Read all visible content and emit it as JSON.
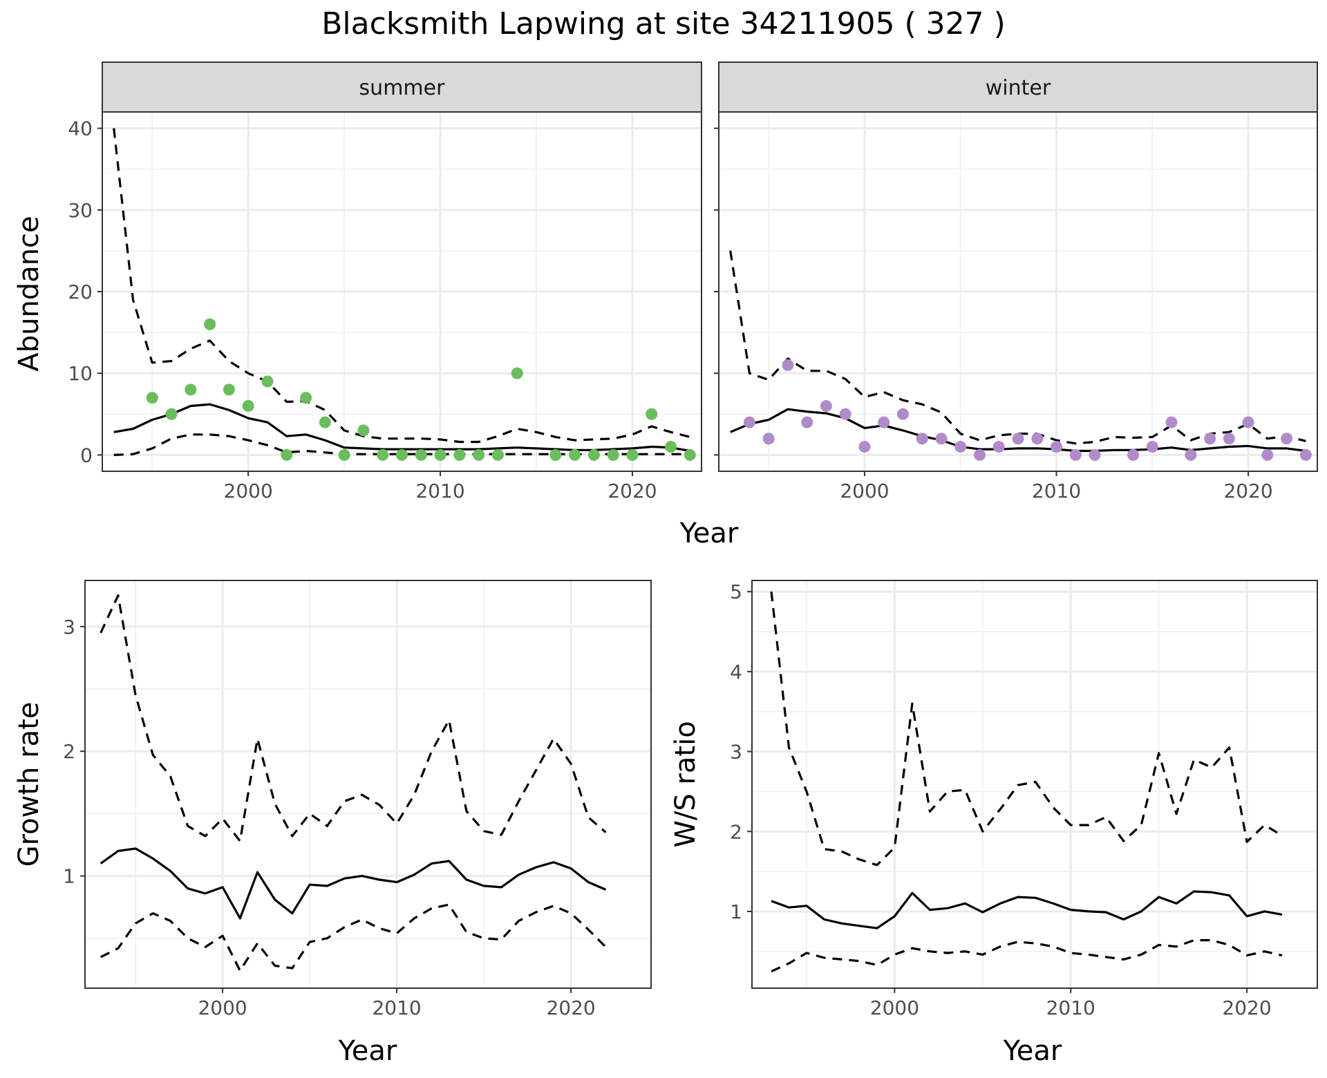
{
  "title": "Blacksmith Lapwing at site 34211905 ( 327 )",
  "colors": {
    "summer_points": "#6ABD5B",
    "winter_points": "#B08BC9",
    "line": "#000000",
    "strip_bg": "#D9D9D9",
    "grid": "#EBEBEB"
  },
  "chart_data": [
    {
      "type": "scatter",
      "panel": "summer",
      "strip_label": "summer",
      "xlabel": "Year",
      "ylabel": "Abundance",
      "xlim": [
        1992.4,
        2023.6
      ],
      "ylim": [
        -2,
        42
      ],
      "x_ticks": [
        2000,
        2010,
        2020
      ],
      "y_ticks": [
        0,
        10,
        20,
        30,
        40
      ],
      "grid": true,
      "points": {
        "x": [
          1995,
          1996,
          1997,
          1998,
          1999,
          2000,
          2001,
          2002,
          2003,
          2004,
          2005,
          2006,
          2007,
          2008,
          2009,
          2010,
          2011,
          2012,
          2013,
          2014,
          2016,
          2017,
          2018,
          2019,
          2020,
          2021,
          2022,
          2023
        ],
        "y": [
          7,
          5,
          8,
          16,
          8,
          6,
          9,
          0,
          7,
          4,
          0,
          3,
          0,
          0,
          0,
          0,
          0,
          0,
          0,
          10,
          0,
          0,
          0,
          0,
          0,
          5,
          1,
          0
        ]
      },
      "x": [
        1993,
        1994,
        1995,
        1996,
        1997,
        1998,
        1999,
        2000,
        2001,
        2002,
        2003,
        2004,
        2005,
        2006,
        2007,
        2008,
        2009,
        2010,
        2011,
        2012,
        2013,
        2014,
        2015,
        2016,
        2017,
        2018,
        2019,
        2020,
        2021,
        2022,
        2023
      ],
      "estimate": [
        2.8,
        3.2,
        4.3,
        5.0,
        6.0,
        6.2,
        5.5,
        4.5,
        4.0,
        2.3,
        2.5,
        1.8,
        0.9,
        0.8,
        0.7,
        0.7,
        0.7,
        0.7,
        0.7,
        0.7,
        0.8,
        0.9,
        0.8,
        0.7,
        0.6,
        0.6,
        0.7,
        0.8,
        1.0,
        0.9,
        0.5
      ],
      "upper": [
        40,
        19,
        11.3,
        11.5,
        13,
        14,
        11.5,
        10,
        9,
        6.5,
        6.6,
        5.5,
        3,
        2.3,
        2,
        2,
        2,
        1.9,
        1.6,
        1.6,
        2.3,
        3.2,
        2.8,
        2.2,
        1.8,
        1.9,
        2.0,
        2.5,
        3.5,
        2.8,
        2.2
      ],
      "lower": [
        0,
        0.1,
        0.8,
        2.0,
        2.5,
        2.5,
        2.3,
        1.8,
        1.2,
        0.3,
        0.5,
        0.3,
        0.1,
        0.1,
        0.1,
        0.1,
        0.1,
        0.1,
        0.1,
        0.1,
        0.1,
        0.1,
        0.1,
        0.1,
        0.1,
        0.1,
        0.1,
        0.1,
        0.1,
        0.1,
        0.1
      ]
    },
    {
      "type": "scatter",
      "panel": "winter",
      "strip_label": "winter",
      "xlabel": "Year",
      "ylabel": "Abundance",
      "xlim": [
        1992.4,
        2023.6
      ],
      "ylim": [
        -2,
        42
      ],
      "x_ticks": [
        2000,
        2010,
        2020
      ],
      "y_ticks": [
        0,
        10,
        20,
        30,
        40
      ],
      "grid": true,
      "points": {
        "x": [
          1994,
          1995,
          1996,
          1997,
          1998,
          1999,
          2000,
          2001,
          2002,
          2003,
          2004,
          2005,
          2006,
          2007,
          2008,
          2009,
          2010,
          2011,
          2012,
          2014,
          2015,
          2016,
          2017,
          2018,
          2019,
          2020,
          2021,
          2022,
          2023
        ],
        "y": [
          4,
          2,
          11,
          4,
          6,
          5,
          1,
          4,
          5,
          2,
          2,
          1,
          0,
          1,
          2,
          2,
          1,
          0,
          0,
          0,
          1,
          4,
          0,
          2,
          2,
          4,
          0,
          2,
          0
        ]
      },
      "x": [
        1993,
        1994,
        1995,
        1996,
        1997,
        1998,
        1999,
        2000,
        2001,
        2002,
        2003,
        2004,
        2005,
        2006,
        2007,
        2008,
        2009,
        2010,
        2011,
        2012,
        2013,
        2014,
        2015,
        2016,
        2017,
        2018,
        2019,
        2020,
        2021,
        2022,
        2023
      ],
      "estimate": [
        2.8,
        3.8,
        4.3,
        5.6,
        5.3,
        5.1,
        4.5,
        3.3,
        3.6,
        3.0,
        2.3,
        1.8,
        1.0,
        0.7,
        0.7,
        0.8,
        0.8,
        0.7,
        0.5,
        0.5,
        0.6,
        0.6,
        0.7,
        0.9,
        0.6,
        0.8,
        1.0,
        1.1,
        0.8,
        0.8,
        0.5
      ],
      "upper": [
        25,
        10,
        9.2,
        11.8,
        10.3,
        10.3,
        9.3,
        7.1,
        7.7,
        6.7,
        6.2,
        5.2,
        2.6,
        1.8,
        2.4,
        2.6,
        2.6,
        1.8,
        1.4,
        1.6,
        2.2,
        2.1,
        2.2,
        3.6,
        1.8,
        2.6,
        2.8,
        3.8,
        2.0,
        2.3,
        1.7
      ]
    },
    {
      "type": "line",
      "panel": "growth",
      "xlabel": "Year",
      "ylabel": "Growth rate",
      "xlim": [
        1992.1,
        2024.6
      ],
      "ylim": [
        0.1,
        3.37
      ],
      "x_ticks": [
        2000,
        2010,
        2020
      ],
      "y_ticks": [
        1,
        2,
        3
      ],
      "grid": true,
      "x": [
        1993,
        1994,
        1995,
        1996,
        1997,
        1998,
        1999,
        2000,
        2001,
        2002,
        2003,
        2004,
        2005,
        2006,
        2007,
        2008,
        2009,
        2010,
        2011,
        2012,
        2013,
        2014,
        2015,
        2016,
        2017,
        2018,
        2019,
        2020,
        2021,
        2022
      ],
      "estimate": [
        1.1,
        1.2,
        1.22,
        1.14,
        1.04,
        0.9,
        0.86,
        0.91,
        0.66,
        1.03,
        0.81,
        0.7,
        0.93,
        0.92,
        0.98,
        1.0,
        0.97,
        0.95,
        1.01,
        1.1,
        1.12,
        0.97,
        0.92,
        0.91,
        1.01,
        1.07,
        1.11,
        1.06,
        0.95,
        0.89
      ],
      "upper": [
        2.95,
        3.25,
        2.45,
        1.97,
        1.8,
        1.4,
        1.32,
        1.46,
        1.28,
        2.1,
        1.58,
        1.32,
        1.5,
        1.4,
        1.6,
        1.65,
        1.57,
        1.42,
        1.65,
        2.0,
        2.25,
        1.52,
        1.36,
        1.33,
        1.6,
        1.85,
        2.1,
        1.9,
        1.47,
        1.35
      ],
      "lower": [
        0.35,
        0.42,
        0.62,
        0.7,
        0.64,
        0.5,
        0.43,
        0.52,
        0.24,
        0.46,
        0.28,
        0.26,
        0.47,
        0.5,
        0.59,
        0.65,
        0.58,
        0.54,
        0.66,
        0.74,
        0.77,
        0.55,
        0.5,
        0.49,
        0.64,
        0.71,
        0.76,
        0.7,
        0.57,
        0.43
      ]
    },
    {
      "type": "line",
      "panel": "ratio",
      "xlabel": "Year",
      "ylabel": "W/S ratio",
      "xlim": [
        1991.9,
        2024.0
      ],
      "ylim": [
        0.04,
        5.14
      ],
      "x_ticks": [
        2000,
        2010,
        2020
      ],
      "y_ticks": [
        1,
        2,
        3,
        4,
        5
      ],
      "grid": true,
      "x": [
        1993,
        1994,
        1995,
        1996,
        1997,
        1998,
        1999,
        2000,
        2001,
        2002,
        2003,
        2004,
        2005,
        2006,
        2007,
        2008,
        2009,
        2010,
        2011,
        2012,
        2013,
        2014,
        2015,
        2016,
        2017,
        2018,
        2019,
        2020,
        2021,
        2022
      ],
      "estimate": [
        1.13,
        1.05,
        1.07,
        0.9,
        0.85,
        0.82,
        0.79,
        0.94,
        1.23,
        1.02,
        1.04,
        1.1,
        0.99,
        1.1,
        1.18,
        1.17,
        1.1,
        1.02,
        1.0,
        0.99,
        0.9,
        1.0,
        1.18,
        1.1,
        1.25,
        1.24,
        1.2,
        0.94,
        1.0,
        0.96
      ],
      "upper": [
        5.0,
        3.05,
        2.5,
        1.78,
        1.75,
        1.65,
        1.58,
        1.8,
        3.6,
        2.25,
        2.5,
        2.52,
        2.0,
        2.28,
        2.58,
        2.62,
        2.3,
        2.08,
        2.08,
        2.18,
        1.88,
        2.08,
        2.98,
        2.22,
        2.9,
        2.8,
        3.05,
        1.87,
        2.08,
        1.95
      ],
      "lower": [
        0.25,
        0.35,
        0.48,
        0.42,
        0.4,
        0.38,
        0.33,
        0.46,
        0.54,
        0.5,
        0.48,
        0.5,
        0.46,
        0.56,
        0.62,
        0.6,
        0.56,
        0.48,
        0.46,
        0.43,
        0.4,
        0.46,
        0.58,
        0.56,
        0.64,
        0.64,
        0.58,
        0.45,
        0.5,
        0.45
      ]
    }
  ]
}
